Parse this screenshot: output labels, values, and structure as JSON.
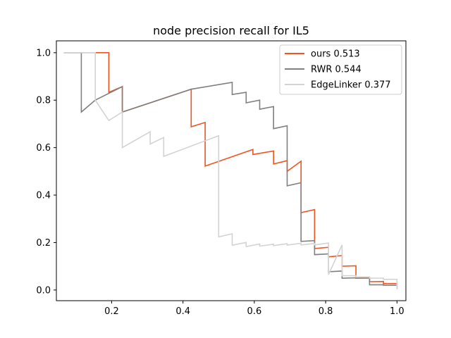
{
  "chart_data": {
    "type": "line",
    "title": "node precision recall for IL5",
    "xlabel": "",
    "ylabel": "",
    "xlim": [
      0.045,
      1.025
    ],
    "ylim": [
      -0.045,
      1.05
    ],
    "xticks": [
      0.2,
      0.4,
      0.6,
      0.8,
      1.0
    ],
    "xtick_labels": [
      "0.2",
      "0.4",
      "0.6",
      "0.8",
      "1.0"
    ],
    "yticks": [
      0.0,
      0.2,
      0.4,
      0.6,
      0.8,
      1.0
    ],
    "ytick_labels": [
      "0.0",
      "0.2",
      "0.4",
      "0.6",
      "0.8",
      "1.0"
    ],
    "grid": false,
    "legend_position": "upper right",
    "series": [
      {
        "name": "ours 0.513",
        "color": "#f0541f",
        "points": [
          [
            0.066,
            1.0
          ],
          [
            0.115,
            1.0
          ],
          [
            0.154,
            1.0
          ],
          [
            0.192,
            1.0
          ],
          [
            0.192,
            0.833
          ],
          [
            0.23,
            0.857
          ],
          [
            0.23,
            0.75
          ],
          [
            0.423,
            0.846
          ],
          [
            0.423,
            0.688
          ],
          [
            0.462,
            0.706
          ],
          [
            0.462,
            0.522
          ],
          [
            0.596,
            0.592
          ],
          [
            0.596,
            0.571
          ],
          [
            0.654,
            0.586
          ],
          [
            0.654,
            0.531
          ],
          [
            0.692,
            0.545
          ],
          [
            0.692,
            0.5
          ],
          [
            0.731,
            0.543
          ],
          [
            0.731,
            0.326
          ],
          [
            0.769,
            0.339
          ],
          [
            0.769,
            0.175
          ],
          [
            0.808,
            0.18
          ],
          [
            0.808,
            0.14
          ],
          [
            0.846,
            0.145
          ],
          [
            0.846,
            0.1
          ],
          [
            0.885,
            0.102
          ],
          [
            0.885,
            0.05
          ],
          [
            0.923,
            0.051
          ],
          [
            0.923,
            0.035
          ],
          [
            0.962,
            0.036
          ],
          [
            0.962,
            0.027
          ],
          [
            1.0,
            0.027
          ],
          [
            1.0,
            0.005
          ]
        ]
      },
      {
        "name": "RWR 0.544",
        "color": "#808080",
        "points": [
          [
            0.066,
            1.0
          ],
          [
            0.115,
            1.0
          ],
          [
            0.115,
            0.75
          ],
          [
            0.154,
            0.8
          ],
          [
            0.23,
            0.857
          ],
          [
            0.23,
            0.75
          ],
          [
            0.423,
            0.846
          ],
          [
            0.538,
            0.875
          ],
          [
            0.538,
            0.824
          ],
          [
            0.577,
            0.833
          ],
          [
            0.577,
            0.789
          ],
          [
            0.615,
            0.8
          ],
          [
            0.615,
            0.762
          ],
          [
            0.654,
            0.773
          ],
          [
            0.654,
            0.68
          ],
          [
            0.692,
            0.692
          ],
          [
            0.692,
            0.439
          ],
          [
            0.731,
            0.452
          ],
          [
            0.731,
            0.205
          ],
          [
            0.769,
            0.208
          ],
          [
            0.769,
            0.149
          ],
          [
            0.808,
            0.152
          ],
          [
            0.808,
            0.077
          ],
          [
            0.846,
            0.08
          ],
          [
            0.846,
            0.05
          ],
          [
            0.885,
            0.051
          ],
          [
            0.885,
            0.05
          ],
          [
            0.923,
            0.05
          ],
          [
            0.923,
            0.022
          ],
          [
            0.962,
            0.022
          ],
          [
            0.962,
            0.02
          ],
          [
            1.0,
            0.02
          ],
          [
            1.0,
            0.005
          ]
        ]
      },
      {
        "name": "EdgeLinker 0.377",
        "color": "#d3d3d3",
        "points": [
          [
            0.066,
            1.0
          ],
          [
            0.154,
            1.0
          ],
          [
            0.154,
            0.8
          ],
          [
            0.192,
            0.714
          ],
          [
            0.23,
            0.75
          ],
          [
            0.23,
            0.6
          ],
          [
            0.308,
            0.667
          ],
          [
            0.308,
            0.615
          ],
          [
            0.346,
            0.643
          ],
          [
            0.346,
            0.563
          ],
          [
            0.5,
            0.65
          ],
          [
            0.5,
            0.224
          ],
          [
            0.538,
            0.237
          ],
          [
            0.538,
            0.189
          ],
          [
            0.577,
            0.2
          ],
          [
            0.577,
            0.183
          ],
          [
            0.615,
            0.194
          ],
          [
            0.615,
            0.185
          ],
          [
            0.654,
            0.193
          ],
          [
            0.654,
            0.187
          ],
          [
            0.692,
            0.195
          ],
          [
            0.692,
            0.189
          ],
          [
            0.731,
            0.197
          ],
          [
            0.731,
            0.19
          ],
          [
            0.769,
            0.196
          ],
          [
            0.769,
            0.19
          ],
          [
            0.808,
            0.198
          ],
          [
            0.808,
            0.065
          ],
          [
            0.846,
            0.19
          ],
          [
            0.846,
            0.06
          ],
          [
            0.885,
            0.06
          ],
          [
            0.885,
            0.055
          ],
          [
            0.923,
            0.055
          ],
          [
            0.923,
            0.05
          ],
          [
            0.962,
            0.05
          ],
          [
            0.962,
            0.045
          ],
          [
            1.0,
            0.045
          ],
          [
            1.0,
            0.005
          ]
        ]
      }
    ]
  }
}
